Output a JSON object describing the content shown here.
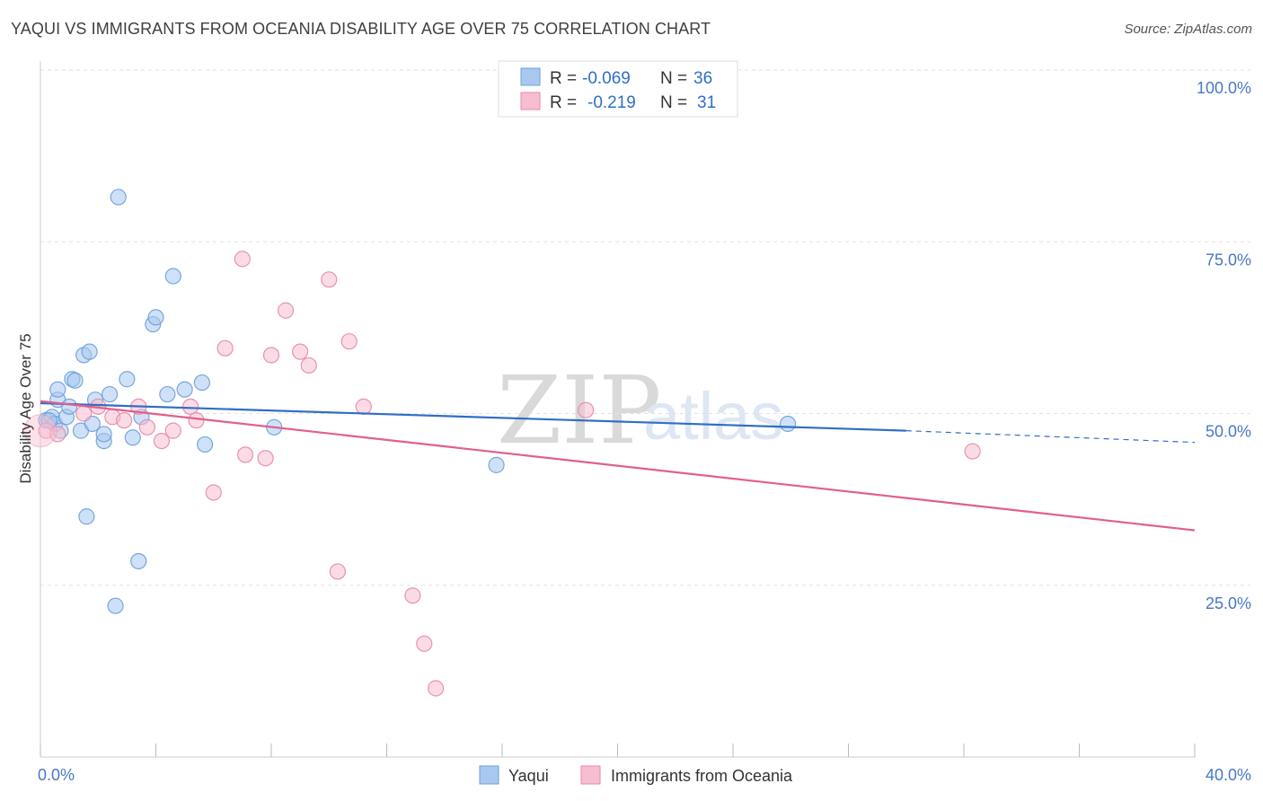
{
  "header": {
    "title": "YAQUI VS IMMIGRANTS FROM OCEANIA DISABILITY AGE OVER 75 CORRELATION CHART",
    "source": "Source: ZipAtlas.com"
  },
  "chart_data": {
    "type": "scatter",
    "title": "YAQUI VS IMMIGRANTS FROM OCEANIA DISABILITY AGE OVER 75 CORRELATION CHART",
    "xlabel": "",
    "ylabel": "Disability Age Over 75",
    "xlim": [
      0,
      40
    ],
    "ylim": [
      0,
      100
    ],
    "x_tick_labels": {
      "left": "0.0%",
      "right": "40.0%"
    },
    "y_ticks": [
      {
        "value": 100,
        "label": "100.0%"
      },
      {
        "value": 75,
        "label": "75.0%"
      },
      {
        "value": 50,
        "label": "50.0%"
      },
      {
        "value": 25,
        "label": "25.0%"
      }
    ],
    "grid": true,
    "watermark": {
      "zip": "ZIP",
      "atlas": "atlas"
    },
    "legend_stats": [
      {
        "r_label": "R =",
        "r_value": "-0.069",
        "n_label": "N =",
        "n_value": "36"
      },
      {
        "r_label": "R =",
        "r_value": "-0.219",
        "n_label": "N =",
        "n_value": "31"
      }
    ],
    "series": [
      {
        "name": "Yaqui",
        "color": "#a8c8f0",
        "stroke": "#6c9fd8",
        "line_color": "#2f6fc5",
        "trend": {
          "x1": 0,
          "y1": 51.5,
          "x2": 30,
          "y2": 47.5,
          "dashed_to_x": 40,
          "dashed_to_y": 45.8
        },
        "points": [
          [
            0.2,
            49
          ],
          [
            0.4,
            49.5
          ],
          [
            0.5,
            48.5
          ],
          [
            0.6,
            52
          ],
          [
            0.6,
            53.5
          ],
          [
            0.7,
            47.5
          ],
          [
            0.9,
            49.5
          ],
          [
            1.0,
            51
          ],
          [
            1.1,
            55
          ],
          [
            1.2,
            54.8
          ],
          [
            1.4,
            47.5
          ],
          [
            1.5,
            58.5
          ],
          [
            1.6,
            35
          ],
          [
            1.7,
            59
          ],
          [
            1.8,
            48.5
          ],
          [
            1.9,
            52
          ],
          [
            2.2,
            46
          ],
          [
            2.2,
            47
          ],
          [
            2.4,
            52.8
          ],
          [
            2.6,
            22
          ],
          [
            2.7,
            81.5
          ],
          [
            3.0,
            55
          ],
          [
            3.2,
            46.5
          ],
          [
            3.4,
            28.5
          ],
          [
            3.5,
            49.5
          ],
          [
            3.9,
            63
          ],
          [
            4.0,
            64
          ],
          [
            4.4,
            52.8
          ],
          [
            4.6,
            70
          ],
          [
            5.0,
            53.5
          ],
          [
            5.6,
            54.5
          ],
          [
            5.7,
            45.5
          ],
          [
            8.1,
            48
          ],
          [
            15.8,
            42.5
          ],
          [
            25.9,
            48.5
          ],
          [
            0.3,
            49
          ]
        ]
      },
      {
        "name": "Immigrants from Oceania",
        "color": "#f7bdd0",
        "stroke": "#e58aa7",
        "line_color": "#e0608c",
        "trend": {
          "x1": 0,
          "y1": 51.8,
          "x2": 40,
          "y2": 33.0
        },
        "points": [
          [
            0.2,
            47.5
          ],
          [
            0.6,
            47
          ],
          [
            1.5,
            50
          ],
          [
            2.0,
            51
          ],
          [
            2.5,
            49.5
          ],
          [
            2.9,
            49
          ],
          [
            3.4,
            51
          ],
          [
            3.7,
            48
          ],
          [
            4.2,
            46
          ],
          [
            4.6,
            47.5
          ],
          [
            5.2,
            51
          ],
          [
            5.4,
            49
          ],
          [
            6.0,
            38.5
          ],
          [
            6.4,
            59.5
          ],
          [
            7.0,
            72.5
          ],
          [
            7.1,
            44
          ],
          [
            7.8,
            43.5
          ],
          [
            8.0,
            58.5
          ],
          [
            8.5,
            65
          ],
          [
            9.0,
            59
          ],
          [
            9.3,
            57
          ],
          [
            10.0,
            69.5
          ],
          [
            10.3,
            27
          ],
          [
            10.7,
            60.5
          ],
          [
            11.2,
            51
          ],
          [
            12.9,
            23.5
          ],
          [
            13.3,
            16.5
          ],
          [
            13.7,
            10
          ],
          [
            18.9,
            50.5
          ],
          [
            32.3,
            44.5
          ],
          [
            0.0,
            47.5
          ]
        ]
      }
    ]
  }
}
